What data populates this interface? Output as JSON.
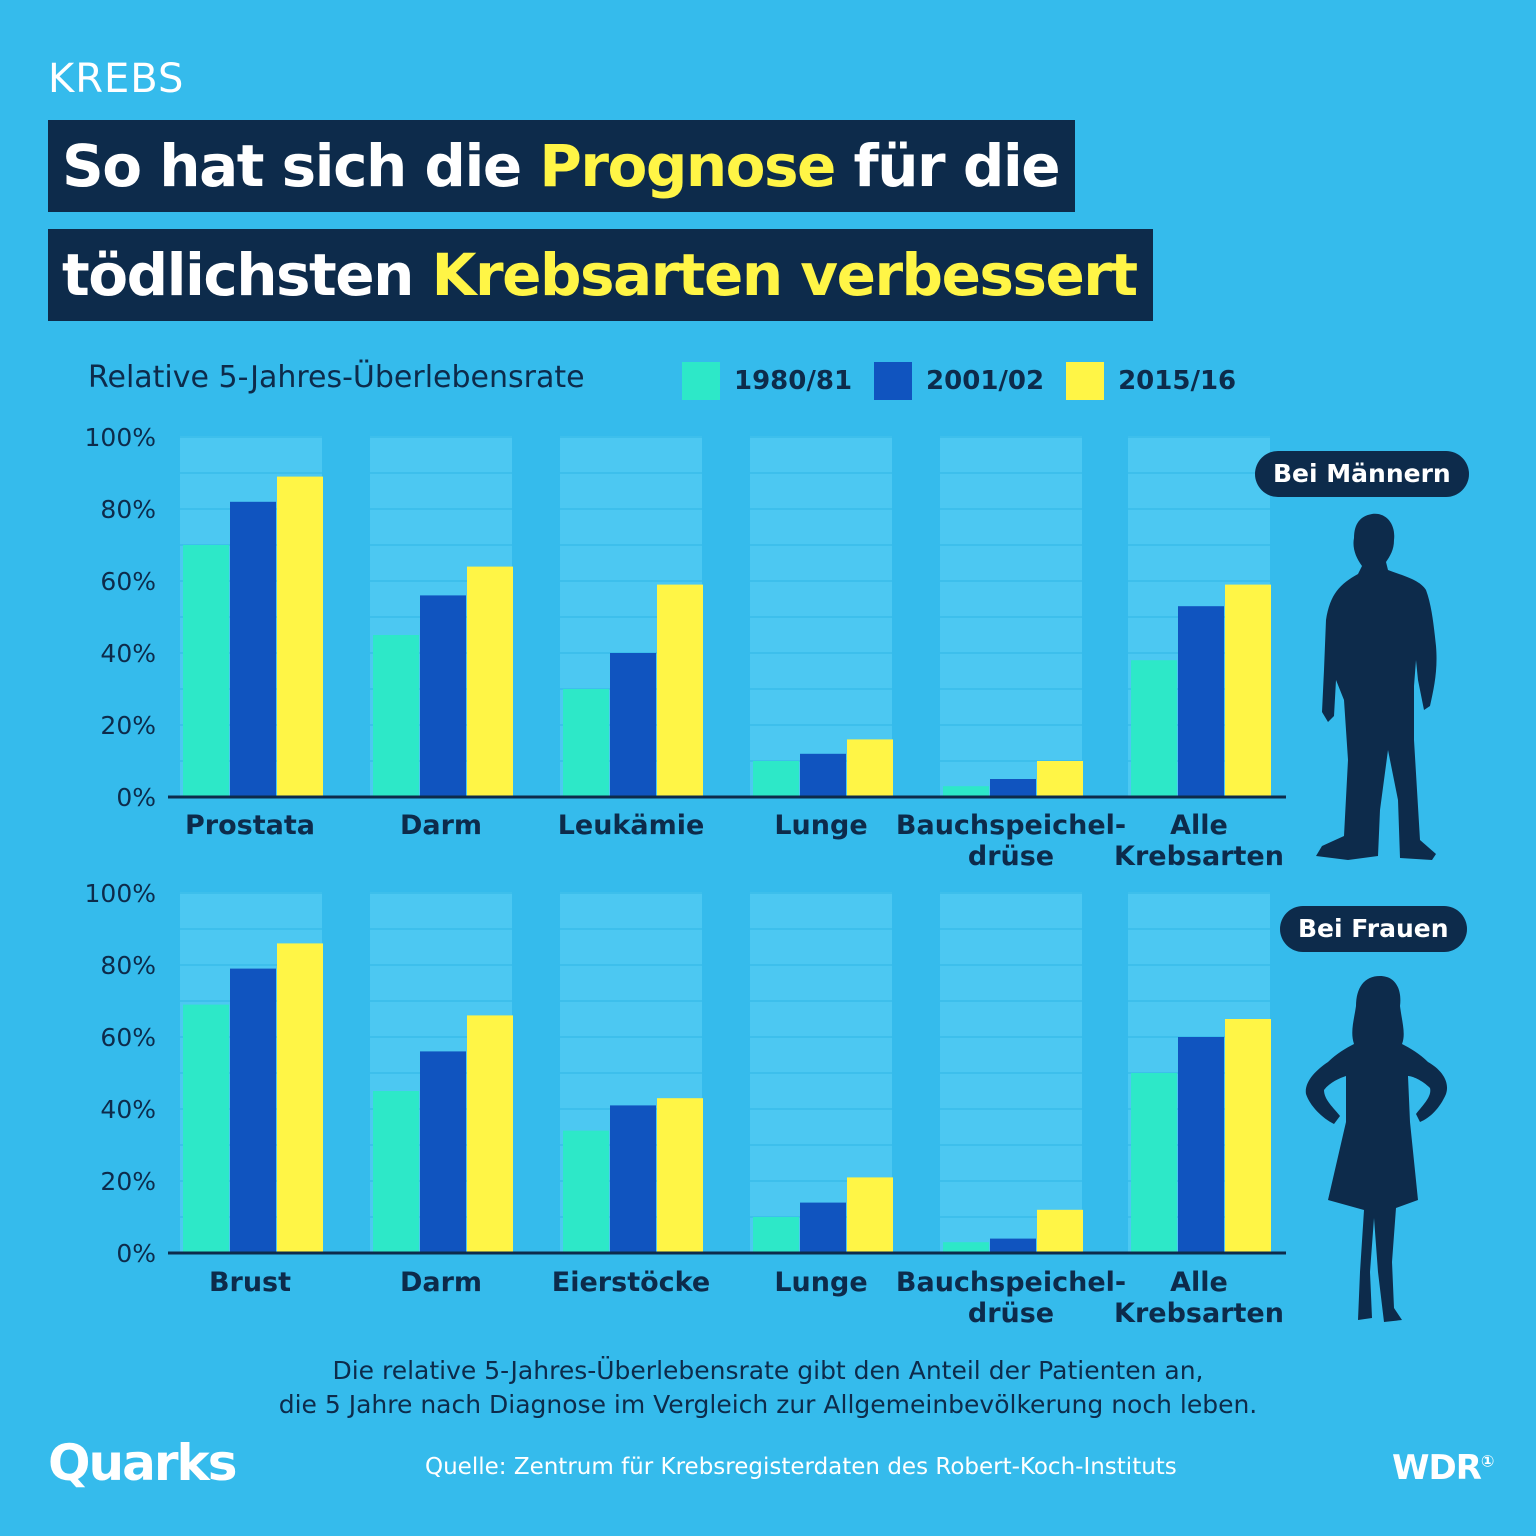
{
  "header": {
    "kicker": "KREBS",
    "title_line1_a": "So hat sich die ",
    "title_line1_b": "Prognose",
    "title_line1_c": " für die",
    "title_line2_a": "tödlichsten ",
    "title_line2_b": "Krebsarten verbessert"
  },
  "subtitle": "Relative 5-Jahres-Überlebensrate",
  "legend": [
    {
      "label": "1980/81",
      "color": "#2DE8C8"
    },
    {
      "label": "2001/02",
      "color": "#1054BF"
    },
    {
      "label": "2015/16",
      "color": "#FFF546"
    }
  ],
  "colors": {
    "background": "#35BBEC",
    "dark": "#0D2B4B",
    "highlight": "#FFF546",
    "band": "#4CC8F2"
  },
  "labels": {
    "men": "Bei Männern",
    "women": "Bei Frauen"
  },
  "chart_data": [
    {
      "type": "bar",
      "title": "Bei Männern",
      "ylabel": "Relative 5-Jahres-Überlebensrate",
      "ylim": [
        0,
        100
      ],
      "yticks": [
        "100%",
        "80%",
        "60%",
        "40%",
        "20%",
        "0%"
      ],
      "categories": [
        [
          "Prostata"
        ],
        [
          "Darm"
        ],
        [
          "Leukämie"
        ],
        [
          "Lunge"
        ],
        [
          "Bauchspeichel-",
          "drüse"
        ],
        [
          "Alle",
          "Krebsarten"
        ]
      ],
      "series": [
        {
          "name": "1980/81",
          "values": [
            70,
            45,
            30,
            10,
            3,
            38
          ]
        },
        {
          "name": "2001/02",
          "values": [
            82,
            56,
            40,
            12,
            5,
            53
          ]
        },
        {
          "name": "2015/16",
          "values": [
            89,
            64,
            59,
            16,
            10,
            59
          ]
        }
      ]
    },
    {
      "type": "bar",
      "title": "Bei Frauen",
      "ylabel": "Relative 5-Jahres-Überlebensrate",
      "ylim": [
        0,
        100
      ],
      "yticks": [
        "100%",
        "80%",
        "60%",
        "40%",
        "20%",
        "0%"
      ],
      "categories": [
        [
          "Brust"
        ],
        [
          "Darm"
        ],
        [
          "Eierstöcke"
        ],
        [
          "Lunge"
        ],
        [
          "Bauchspeichel-",
          "drüse"
        ],
        [
          "Alle",
          "Krebsarten"
        ]
      ],
      "series": [
        {
          "name": "1980/81",
          "values": [
            69,
            45,
            34,
            10,
            3,
            50
          ]
        },
        {
          "name": "2001/02",
          "values": [
            79,
            56,
            41,
            14,
            4,
            60
          ]
        },
        {
          "name": "2015/16",
          "values": [
            86,
            66,
            43,
            21,
            12,
            65
          ]
        }
      ]
    }
  ],
  "footer": {
    "note_line1": "Die relative 5-Jahres-Überlebensrate gibt den Anteil der Patienten an,",
    "note_line2": "die 5 Jahre nach Diagnose im Vergleich zur Allgemeinbevölkerung noch leben.",
    "brand": "Quarks",
    "source": "Quelle: Zentrum für Krebsregisterdaten des Robert-Koch-Instituts",
    "broadcaster": "WDR",
    "broadcaster_mark": "①"
  }
}
